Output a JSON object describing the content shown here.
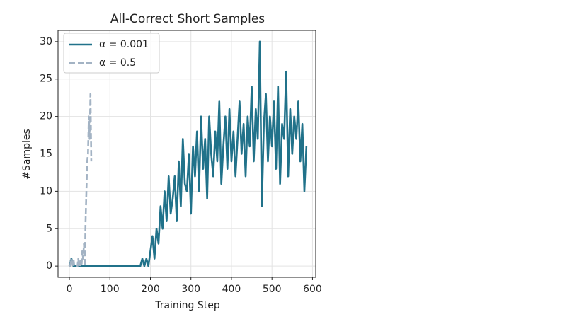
{
  "chart_data": {
    "type": "line",
    "title": "All-Correct Short Samples",
    "xlabel": "Training Step",
    "ylabel": "#Samples",
    "xlim": [
      -28,
      608
    ],
    "ylim": [
      -1.5,
      31.5
    ],
    "xticks": [
      0,
      100,
      200,
      300,
      400,
      500,
      600
    ],
    "yticks": [
      0,
      5,
      10,
      15,
      20,
      25,
      30
    ],
    "grid": true,
    "legend": "upper left",
    "series": [
      {
        "name": "α = 0.001",
        "color": "#21728a",
        "dash": "solid",
        "x": [
          0,
          5,
          10,
          15,
          20,
          25,
          30,
          35,
          40,
          45,
          50,
          55,
          60,
          65,
          70,
          75,
          80,
          85,
          90,
          95,
          100,
          105,
          110,
          115,
          120,
          125,
          130,
          135,
          140,
          145,
          150,
          155,
          160,
          165,
          170,
          175,
          180,
          185,
          190,
          195,
          200,
          205,
          210,
          215,
          220,
          225,
          230,
          235,
          240,
          245,
          250,
          255,
          260,
          265,
          270,
          275,
          280,
          285,
          290,
          295,
          300,
          305,
          310,
          315,
          320,
          325,
          330,
          335,
          340,
          345,
          350,
          355,
          360,
          365,
          370,
          375,
          380,
          385,
          390,
          395,
          400,
          405,
          410,
          415,
          420,
          425,
          430,
          435,
          440,
          445,
          450,
          455,
          460,
          465,
          470,
          475,
          480,
          485,
          490,
          495,
          500,
          505,
          510,
          515,
          520,
          525,
          530,
          535,
          540,
          545,
          550,
          555,
          560,
          565,
          570,
          575,
          580,
          585
        ],
        "values": [
          0,
          1,
          0,
          0,
          0,
          0,
          0,
          0,
          0,
          0,
          0,
          0,
          0,
          0,
          0,
          0,
          0,
          0,
          0,
          0,
          0,
          0,
          0,
          0,
          0,
          0,
          0,
          0,
          0,
          0,
          0,
          0,
          0,
          0,
          0,
          0,
          1,
          0,
          1,
          0,
          2,
          4,
          1,
          5,
          3,
          8,
          5,
          10,
          6,
          12,
          7,
          9,
          12,
          6,
          14,
          8,
          17,
          11,
          10,
          15,
          7,
          16,
          12,
          18,
          10,
          20,
          13,
          17,
          9,
          20,
          15,
          12,
          18,
          14,
          22,
          11,
          16,
          20,
          13,
          21,
          14,
          18,
          12,
          17,
          22,
          15,
          19,
          12,
          20,
          16,
          24,
          14,
          21,
          17,
          30,
          8,
          19,
          23,
          14,
          20,
          16,
          22,
          13,
          24,
          11,
          19,
          17,
          26,
          12,
          21,
          15,
          20,
          17,
          22,
          14,
          19,
          10,
          16
        ]
      },
      {
        "name": "α = 0.5",
        "color": "#a3b3c4",
        "dash": "dashed",
        "x": [
          0,
          2,
          4,
          6,
          8,
          10,
          12,
          14,
          16,
          18,
          20,
          22,
          24,
          26,
          28,
          30,
          32,
          34,
          36,
          38,
          40,
          42,
          44,
          46,
          48,
          50,
          52,
          54
        ],
        "values": [
          0,
          0,
          1,
          0,
          0,
          1,
          0,
          0,
          0,
          0,
          0,
          1,
          0,
          0,
          1,
          0,
          2,
          1,
          3,
          0,
          6,
          10,
          14,
          15,
          20,
          17,
          23,
          14
        ]
      }
    ]
  }
}
